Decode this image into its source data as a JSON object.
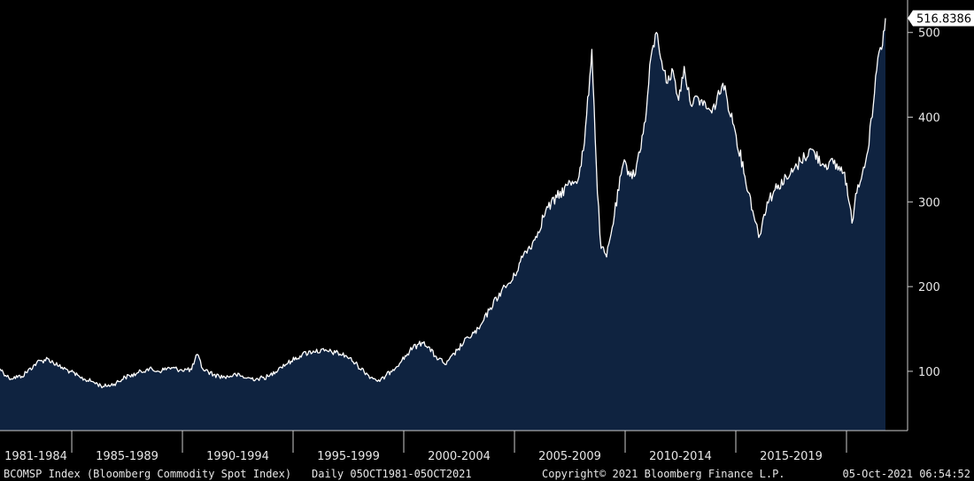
{
  "chart_data": {
    "type": "area",
    "title": "",
    "xlabel": "",
    "ylabel": "",
    "ylim": [
      30,
      530
    ],
    "xlim": [
      "1981-10-05",
      "2021-10-05"
    ],
    "y_ticks": [
      100,
      200,
      300,
      400,
      500
    ],
    "x_period_labels": [
      "1981-1984",
      "1985-1989",
      "1990-1994",
      "1995-1999",
      "2000-2004",
      "2005-2009",
      "2010-2014",
      "2015-2019"
    ],
    "grid": false,
    "legend": "none",
    "last_value": 516.8386,
    "last_value_label": "516.8386",
    "series": [
      {
        "x": [
          "1981-10-05",
          "1982-03-01",
          "1982-10-01",
          "1983-06-01",
          "1983-12-01",
          "1984-06-01",
          "1984-12-01",
          "1985-06-01",
          "1985-12-01",
          "1986-06-01",
          "1986-12-01",
          "1987-06-01",
          "1987-12-01",
          "1988-06-01",
          "1988-12-01",
          "1989-06-01",
          "1989-12-01",
          "1990-06-01",
          "1990-09-01",
          "1990-12-01",
          "1991-06-01",
          "1991-12-01",
          "1992-06-01",
          "1992-12-01",
          "1993-06-01",
          "1993-12-01",
          "1994-06-01",
          "1994-12-01",
          "1995-06-01",
          "1995-12-01",
          "1996-06-01",
          "1996-12-01",
          "1997-06-01",
          "1997-12-01",
          "1998-06-01",
          "1998-12-01",
          "1999-06-01",
          "1999-12-01",
          "2000-06-01",
          "2000-12-01",
          "2001-06-01",
          "2001-12-01",
          "2002-06-01",
          "2002-12-01",
          "2003-06-01",
          "2003-12-01",
          "2004-06-01",
          "2004-12-01",
          "2005-06-01",
          "2005-12-01",
          "2006-06-01",
          "2006-12-01",
          "2007-06-01",
          "2007-12-01",
          "2008-03-01",
          "2008-07-01",
          "2008-10-01",
          "2008-12-01",
          "2009-03-01",
          "2009-06-01",
          "2009-12-01",
          "2010-06-01",
          "2010-12-01",
          "2011-03-01",
          "2011-06-01",
          "2011-10-01",
          "2011-12-01",
          "2012-03-01",
          "2012-06-01",
          "2012-09-01",
          "2012-12-01",
          "2013-06-01",
          "2013-12-01",
          "2014-06-01",
          "2014-12-01",
          "2015-06-01",
          "2015-12-01",
          "2016-01-15",
          "2016-06-01",
          "2016-12-01",
          "2017-06-01",
          "2017-12-01",
          "2018-06-01",
          "2018-12-01",
          "2019-06-01",
          "2019-12-01",
          "2020-04-01",
          "2020-06-01",
          "2020-12-01",
          "2021-03-01",
          "2021-06-01",
          "2021-08-01",
          "2021-10-05"
        ],
        "values": [
          103,
          92,
          94,
          110,
          115,
          106,
          100,
          92,
          88,
          82,
          85,
          93,
          97,
          103,
          100,
          104,
          102,
          102,
          120,
          103,
          96,
          93,
          96,
          92,
          91,
          94,
          105,
          112,
          120,
          124,
          124,
          122,
          118,
          107,
          95,
          88,
          100,
          113,
          128,
          135,
          118,
          108,
          125,
          140,
          150,
          175,
          195,
          208,
          238,
          255,
          290,
          305,
          320,
          330,
          370,
          480,
          310,
          245,
          235,
          270,
          345,
          330,
          395,
          470,
          500,
          455,
          440,
          455,
          420,
          460,
          420,
          420,
          405,
          440,
          390,
          330,
          275,
          258,
          300,
          320,
          330,
          348,
          362,
          345,
          345,
          335,
          275,
          310,
          355,
          400,
          470,
          480,
          516.8386
        ]
      }
    ],
    "colors": {
      "background": "#000000",
      "area_fill": "#0f2340",
      "line": "#ffffff",
      "text": "#e6e6e6",
      "value_box": "#ffffff"
    }
  },
  "footer": {
    "index_desc": "BCOMSP Index (Bloomberg Commodity Spot Index)",
    "range_desc": "Daily 05OCT1981-05OCT2021",
    "copyright": "Copyright© 2021 Bloomberg Finance L.P.",
    "timestamp": "05-Oct-2021 06:54:52"
  }
}
